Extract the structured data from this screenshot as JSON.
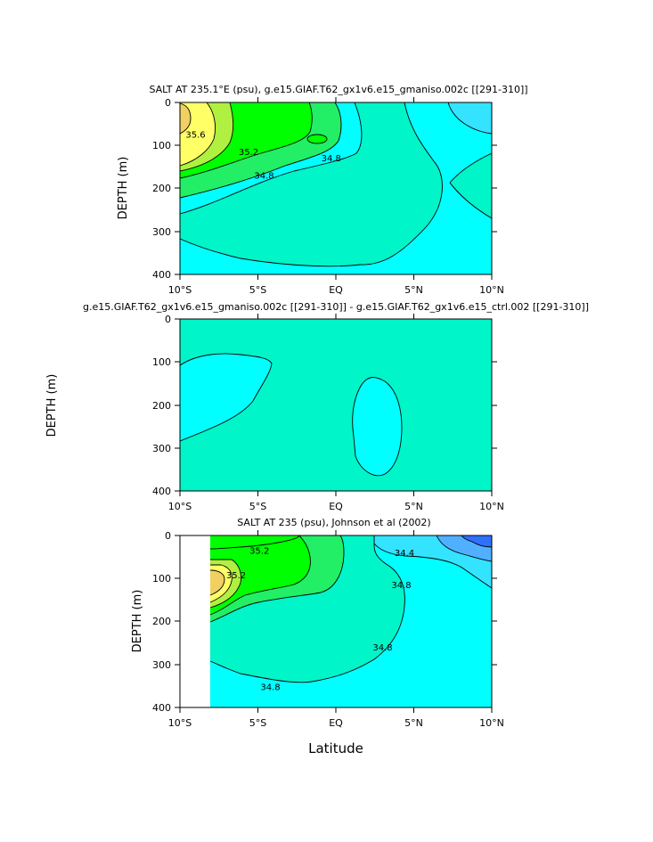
{
  "colors": {
    "cyan": "#00ffff",
    "cyan_light": "#33e3ff",
    "aquamarine": "#00f5c8",
    "green_mid": "#22ee66",
    "green_bright": "#00ff00",
    "green_yellow": "#b0f040",
    "yellow": "#ffff66",
    "gold": "#f0d060",
    "blue_light": "#50b0ff",
    "blue": "#3070ff"
  },
  "chart_data": [
    {
      "type": "contour",
      "title": "SALT AT 235.1°E (psu), g.e15.GIAF.T62_gx1v6.e15_gmaniso.002c [[291-310]]",
      "ylabel": "DEPTH (m)",
      "xlabel": "",
      "xlim": [
        -10,
        10
      ],
      "ylim": [
        400,
        0
      ],
      "x_ticks": [
        "10°S",
        "5°S",
        "EQ",
        "5°N",
        "10°N"
      ],
      "y_ticks": [
        "0",
        "100",
        "200",
        "300",
        "400"
      ],
      "contour_labels": [
        {
          "text": "35.6",
          "x": -9.0,
          "y": 75
        },
        {
          "text": "35.2",
          "x": -5.6,
          "y": 115
        },
        {
          "text": "34.8",
          "x": -4.6,
          "y": 170
        },
        {
          "text": "34.8",
          "x": -0.3,
          "y": 130
        }
      ]
    },
    {
      "type": "contour",
      "title": "g.e15.GIAF.T62_gx1v6.e15_gmaniso.002c [[291-310]] - g.e15.GIAF.T62_gx1v6.e15_ctrl.002 [[291-310]]",
      "ylabel": "DEPTH (m)",
      "xlabel": "",
      "xlim": [
        -10,
        10
      ],
      "ylim": [
        400,
        0
      ],
      "x_ticks": [
        "10°S",
        "5°S",
        "EQ",
        "5°N",
        "10°N"
      ],
      "y_ticks": [
        "0",
        "100",
        "200",
        "300",
        "400"
      ],
      "contour_labels": []
    },
    {
      "type": "contour",
      "title": "SALT AT 235 (psu), Johnson et al (2002)",
      "ylabel": "DEPTH (m)",
      "xlabel": "Latitude",
      "xlim": [
        -10,
        10
      ],
      "ylim": [
        400,
        0
      ],
      "x_ticks": [
        "10°S",
        "5°S",
        "EQ",
        "5°N",
        "10°N"
      ],
      "y_ticks": [
        "0",
        "100",
        "200",
        "300",
        "400"
      ],
      "contour_labels": [
        {
          "text": "35.2",
          "x": -4.9,
          "y": 35
        },
        {
          "text": "35.2",
          "x": -6.4,
          "y": 92
        },
        {
          "text": "34.4",
          "x": 4.4,
          "y": 40
        },
        {
          "text": "34.8",
          "x": 4.2,
          "y": 115
        },
        {
          "text": "34.8",
          "x": 3.0,
          "y": 260
        },
        {
          "text": "34.8",
          "x": -4.2,
          "y": 352
        }
      ]
    }
  ]
}
